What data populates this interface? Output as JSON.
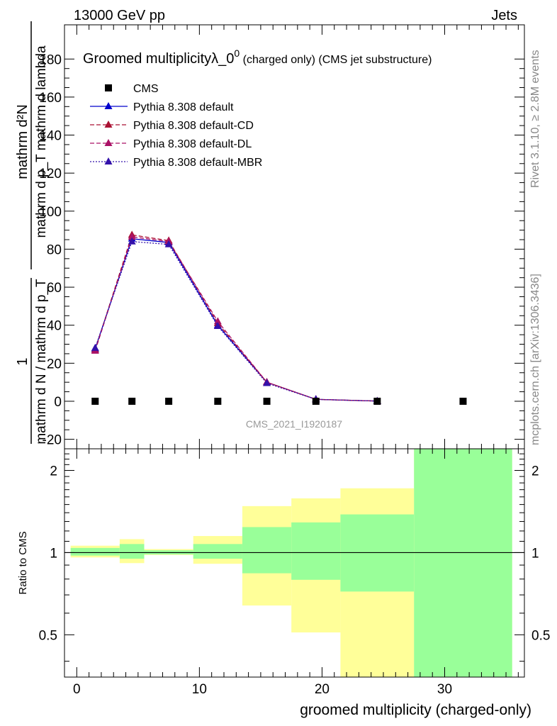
{
  "header": {
    "left": "13000 GeV pp",
    "right": "Jets"
  },
  "side_labels": {
    "rivet": "Rivet 3.1.10, ≥ 2.8M events",
    "mcplots": "mcplots.cern.ch [arXiv:1306.3436]"
  },
  "watermark": "CMS_2021_I1920187",
  "chart_data": [
    {
      "type": "line",
      "title": "Groomed multiplicityλ_0",
      "title_sup": "0",
      "title_suffix": " (charged only) (CMS jet substructure)",
      "ylabel": {
        "numerator": "mathrm d²N",
        "denominator": "mathrm d p_T mathrm d lambda",
        "prefix_one": "1",
        "prefix_den": "mathrm d N / mathrm d p_T"
      },
      "ylim": [
        -25,
        198
      ],
      "yticks": [
        -20,
        0,
        20,
        40,
        60,
        80,
        100,
        120,
        140,
        160,
        180
      ],
      "xlim": [
        -1,
        36.5
      ],
      "legend": {
        "placement": "top-left",
        "entries": [
          {
            "label": "CMS",
            "marker": "square",
            "color": "#000000"
          },
          {
            "label": "Pythia 8.308 default",
            "marker": "triangle",
            "color": "#0000cc",
            "dash": "solid"
          },
          {
            "label": "Pythia 8.308 default-CD",
            "marker": "triangle",
            "color": "#aa1133",
            "dash": "dashed"
          },
          {
            "label": "Pythia 8.308 default-DL",
            "marker": "triangle",
            "color": "#aa1166",
            "dash": "dashed"
          },
          {
            "label": "Pythia 8.308 default-MBR",
            "marker": "triangle",
            "color": "#3311aa",
            "dash": "dotted"
          }
        ]
      },
      "x": [
        1.5,
        4.5,
        7.5,
        11.5,
        15.5,
        19.5,
        24.5,
        31.5
      ],
      "series": [
        {
          "name": "CMS",
          "values": [
            0,
            0,
            0,
            0,
            0,
            0,
            0,
            0
          ]
        },
        {
          "name": "Pythia 8.308 default",
          "values": [
            27.5,
            85.5,
            83.5,
            40,
            10,
            1,
            0.1,
            null
          ]
        },
        {
          "name": "Pythia 8.308 default-CD",
          "values": [
            27,
            87.5,
            84.5,
            41,
            10,
            1,
            0.1,
            null
          ]
        },
        {
          "name": "Pythia 8.308 default-DL",
          "values": [
            26.5,
            86.5,
            84,
            42,
            10,
            1,
            0.1,
            null
          ]
        },
        {
          "name": "Pythia 8.308 default-MBR",
          "values": [
            28,
            84,
            82.5,
            39.5,
            9.5,
            1,
            0.1,
            null
          ]
        }
      ]
    },
    {
      "type": "area",
      "ylabel": "Ratio to CMS",
      "xlabel": "groomed multiplicity (charged-only)",
      "yscale": "log",
      "ylim": [
        0.35,
        2.4
      ],
      "yticks": [
        0.5,
        1,
        2
      ],
      "xlim": [
        -1,
        36.5
      ],
      "xticks": [
        0,
        10,
        20,
        30
      ],
      "reference_line": 1,
      "bins": [
        {
          "lo": -0.5,
          "hi": 3.5,
          "yellow": [
            0.96,
            1.06
          ],
          "green": [
            0.975,
            1.04
          ]
        },
        {
          "lo": 3.5,
          "hi": 5.5,
          "yellow": [
            0.915,
            1.12
          ],
          "green": [
            0.95,
            1.075
          ]
        },
        {
          "lo": 5.5,
          "hi": 9.5,
          "yellow": [
            0.98,
            1.03
          ],
          "green": [
            0.985,
            1.02
          ]
        },
        {
          "lo": 9.5,
          "hi": 13.5,
          "yellow": [
            0.91,
            1.15
          ],
          "green": [
            0.95,
            1.075
          ]
        },
        {
          "lo": 13.5,
          "hi": 17.5,
          "yellow": [
            0.64,
            1.48
          ],
          "green": [
            0.84,
            1.24
          ]
        },
        {
          "lo": 17.5,
          "hi": 21.5,
          "yellow": [
            0.51,
            1.58
          ],
          "green": [
            0.795,
            1.29
          ]
        },
        {
          "lo": 21.5,
          "hi": 27.5,
          "yellow": [
            0.2,
            1.72
          ],
          "green": [
            0.72,
            1.38
          ]
        },
        {
          "lo": 27.5,
          "hi": 35.5,
          "yellow": [
            0.2,
            3.0
          ],
          "green": [
            0.2,
            3.0
          ]
        }
      ],
      "band_colors": {
        "yellow": "#ffff99",
        "green": "#99ff99"
      }
    }
  ]
}
